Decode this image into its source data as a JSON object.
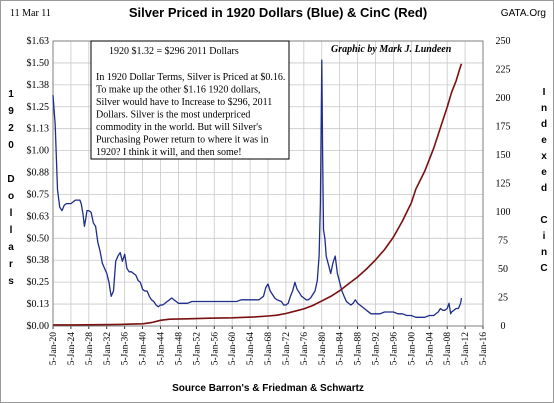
{
  "header": {
    "date": "11 Mar 11",
    "title": "Silver Priced in 1920 Dollars (Blue) & CinC (Red)",
    "source_tag": "GATA.Org"
  },
  "credit": "Graphic by Mark J. Lundeen",
  "source_note": "Source Barron's & Friedman & Schwartz",
  "annotation": {
    "headline": "1920 $1.32 = $296 2011 Dollars",
    "lines": [
      "In 1920 Dollar Terms, Silver is Priced at $0.16.",
      "To make up the other $1.16 1920 dollars,",
      "Silver would have to Increase to $296, 2011",
      "Dollars.  Silver is the most underpriced",
      "commodity in the world.   But will Silver's",
      "Purchasing Power return to where it was in",
      "1920?  I think it will, and then some!"
    ]
  },
  "left_axis_label": [
    "1",
    "9",
    "2",
    "0",
    "",
    "D",
    "o",
    "l",
    "l",
    "a",
    "r",
    "s"
  ],
  "right_axis_label": [
    "I",
    "n",
    "d",
    "e",
    "x",
    "e",
    "d",
    "",
    "C",
    "i",
    "n",
    "C"
  ],
  "colors": {
    "silver_series": "#1f2d8a",
    "cinc_series": "#7a1010",
    "grid": "#c8c8c8",
    "plot_border": "#7f7f7f"
  },
  "chart_data": {
    "type": "line",
    "title": "Silver Priced in 1920 Dollars (Blue) & CinC (Red)",
    "xlabel": "Source Barron's & Friedman & Schwartz",
    "ylabel_left": "1920 Dollars",
    "ylabel_right": "Indexed CinC",
    "x_tick_labels": [
      "5-Jan-20",
      "5-Jan-24",
      "5-Jan-28",
      "5-Jan-32",
      "5-Jan-36",
      "5-Jan-40",
      "5-Jan-44",
      "5-Jan-48",
      "5-Jan-52",
      "5-Jan-56",
      "5-Jan-60",
      "5-Jan-64",
      "5-Jan-68",
      "5-Jan-72",
      "5-Jan-76",
      "5-Jan-80",
      "5-Jan-84",
      "5-Jan-88",
      "5-Jan-92",
      "5-Jan-96",
      "5-Jan-00",
      "5-Jan-04",
      "5-Jan-08",
      "5-Jan-12",
      "5-Jan-16"
    ],
    "x_tick_years": [
      1920,
      1924,
      1928,
      1932,
      1936,
      1940,
      1944,
      1948,
      1952,
      1956,
      1960,
      1964,
      1968,
      1972,
      1976,
      1980,
      1984,
      1988,
      1992,
      1996,
      2000,
      2004,
      2008,
      2012,
      2016
    ],
    "xlim": [
      1920,
      2016
    ],
    "ylim_left": [
      0,
      1.63
    ],
    "y_ticks_left": [
      "$0.00",
      "$0.13",
      "$0.25",
      "$0.38",
      "$0.50",
      "$0.63",
      "$0.75",
      "$0.88",
      "$1.00",
      "$1.13",
      "$1.25",
      "$1.38",
      "$1.50",
      "$1.63"
    ],
    "y_tick_values_left": [
      0,
      0.1254,
      0.2508,
      0.3762,
      0.5015,
      0.6269,
      0.7523,
      0.8777,
      1.0031,
      1.1285,
      1.2538,
      1.3792,
      1.5046,
      1.63
    ],
    "ylim_right": [
      0,
      250
    ],
    "y_ticks_right": [
      "0",
      "25",
      "50",
      "75",
      "100",
      "125",
      "150",
      "175",
      "200",
      "225",
      "250"
    ],
    "y_tick_values_right": [
      0,
      25,
      50,
      75,
      100,
      125,
      150,
      175,
      200,
      225,
      250
    ],
    "grid": true,
    "series": [
      {
        "name": "Silver in 1920 Dollars (Blue)",
        "axis": "left",
        "points": [
          [
            1920.0,
            1.32
          ],
          [
            1920.5,
            1.15
          ],
          [
            1921.0,
            0.78
          ],
          [
            1921.5,
            0.68
          ],
          [
            1922.0,
            0.66
          ],
          [
            1922.5,
            0.69
          ],
          [
            1923.0,
            0.7
          ],
          [
            1923.5,
            0.7
          ],
          [
            1924.0,
            0.7
          ],
          [
            1924.5,
            0.71
          ],
          [
            1925.0,
            0.72
          ],
          [
            1925.5,
            0.72
          ],
          [
            1926.0,
            0.72
          ],
          [
            1926.3,
            0.7
          ],
          [
            1926.7,
            0.64
          ],
          [
            1927.0,
            0.57
          ],
          [
            1927.3,
            0.61
          ],
          [
            1927.6,
            0.66
          ],
          [
            1928.0,
            0.66
          ],
          [
            1928.5,
            0.65
          ],
          [
            1929.0,
            0.59
          ],
          [
            1929.5,
            0.57
          ],
          [
            1930.0,
            0.48
          ],
          [
            1930.5,
            0.43
          ],
          [
            1931.0,
            0.36
          ],
          [
            1931.5,
            0.33
          ],
          [
            1932.0,
            0.3
          ],
          [
            1932.5,
            0.25
          ],
          [
            1932.8,
            0.2
          ],
          [
            1933.0,
            0.17
          ],
          [
            1933.5,
            0.2
          ],
          [
            1934.0,
            0.37
          ],
          [
            1934.5,
            0.4
          ],
          [
            1935.0,
            0.42
          ],
          [
            1935.5,
            0.37
          ],
          [
            1936.0,
            0.41
          ],
          [
            1936.5,
            0.33
          ],
          [
            1937.0,
            0.31
          ],
          [
            1937.5,
            0.31
          ],
          [
            1938.0,
            0.3
          ],
          [
            1938.5,
            0.29
          ],
          [
            1939.0,
            0.26
          ],
          [
            1939.5,
            0.25
          ],
          [
            1940.0,
            0.21
          ],
          [
            1940.5,
            0.2
          ],
          [
            1941.0,
            0.2
          ],
          [
            1941.5,
            0.17
          ],
          [
            1942.0,
            0.15
          ],
          [
            1942.5,
            0.14
          ],
          [
            1943.0,
            0.12
          ],
          [
            1943.5,
            0.11
          ],
          [
            1944.0,
            0.12
          ],
          [
            1944.5,
            0.12
          ],
          [
            1945.0,
            0.13
          ],
          [
            1945.5,
            0.14
          ],
          [
            1946.0,
            0.15
          ],
          [
            1946.5,
            0.16
          ],
          [
            1947.0,
            0.15
          ],
          [
            1947.5,
            0.14
          ],
          [
            1948.0,
            0.13
          ],
          [
            1949.0,
            0.13
          ],
          [
            1950.0,
            0.13
          ],
          [
            1951.0,
            0.14
          ],
          [
            1952.0,
            0.14
          ],
          [
            1953.0,
            0.14
          ],
          [
            1954.0,
            0.14
          ],
          [
            1955.0,
            0.14
          ],
          [
            1956.0,
            0.14
          ],
          [
            1957.0,
            0.14
          ],
          [
            1958.0,
            0.14
          ],
          [
            1959.0,
            0.14
          ],
          [
            1960.0,
            0.14
          ],
          [
            1961.0,
            0.14
          ],
          [
            1962.0,
            0.15
          ],
          [
            1963.0,
            0.15
          ],
          [
            1964.0,
            0.15
          ],
          [
            1965.0,
            0.15
          ],
          [
            1966.0,
            0.15
          ],
          [
            1966.5,
            0.16
          ],
          [
            1967.0,
            0.17
          ],
          [
            1967.5,
            0.22
          ],
          [
            1968.0,
            0.24
          ],
          [
            1968.5,
            0.2
          ],
          [
            1969.0,
            0.18
          ],
          [
            1969.5,
            0.16
          ],
          [
            1970.0,
            0.15
          ],
          [
            1971.0,
            0.14
          ],
          [
            1971.5,
            0.12
          ],
          [
            1972.0,
            0.12
          ],
          [
            1972.5,
            0.13
          ],
          [
            1973.0,
            0.17
          ],
          [
            1973.5,
            0.2
          ],
          [
            1974.0,
            0.25
          ],
          [
            1974.5,
            0.21
          ],
          [
            1975.0,
            0.19
          ],
          [
            1975.5,
            0.17
          ],
          [
            1976.0,
            0.16
          ],
          [
            1976.5,
            0.15
          ],
          [
            1977.0,
            0.15
          ],
          [
            1977.5,
            0.16
          ],
          [
            1978.0,
            0.18
          ],
          [
            1978.5,
            0.2
          ],
          [
            1979.0,
            0.26
          ],
          [
            1979.4,
            0.4
          ],
          [
            1979.7,
            0.7
          ],
          [
            1980.0,
            1.52
          ],
          [
            1980.2,
            1.0
          ],
          [
            1980.4,
            0.55
          ],
          [
            1980.7,
            0.5
          ],
          [
            1981.0,
            0.4
          ],
          [
            1981.5,
            0.35
          ],
          [
            1982.0,
            0.3
          ],
          [
            1982.5,
            0.36
          ],
          [
            1983.0,
            0.4
          ],
          [
            1983.5,
            0.3
          ],
          [
            1984.0,
            0.25
          ],
          [
            1984.5,
            0.2
          ],
          [
            1985.0,
            0.17
          ],
          [
            1985.5,
            0.14
          ],
          [
            1986.0,
            0.13
          ],
          [
            1986.5,
            0.12
          ],
          [
            1987.0,
            0.13
          ],
          [
            1987.5,
            0.15
          ],
          [
            1988.0,
            0.13
          ],
          [
            1988.5,
            0.12
          ],
          [
            1989.0,
            0.11
          ],
          [
            1989.5,
            0.1
          ],
          [
            1990.0,
            0.09
          ],
          [
            1991.0,
            0.07
          ],
          [
            1992.0,
            0.07
          ],
          [
            1993.0,
            0.07
          ],
          [
            1994.0,
            0.08
          ],
          [
            1995.0,
            0.08
          ],
          [
            1996.0,
            0.08
          ],
          [
            1997.0,
            0.07
          ],
          [
            1998.0,
            0.07
          ],
          [
            1999.0,
            0.06
          ],
          [
            2000.0,
            0.06
          ],
          [
            2001.0,
            0.05
          ],
          [
            2002.0,
            0.05
          ],
          [
            2003.0,
            0.05
          ],
          [
            2004.0,
            0.06
          ],
          [
            2005.0,
            0.06
          ],
          [
            2006.0,
            0.08
          ],
          [
            2006.5,
            0.1
          ],
          [
            2007.0,
            0.09
          ],
          [
            2007.5,
            0.09
          ],
          [
            2008.0,
            0.1
          ],
          [
            2008.4,
            0.13
          ],
          [
            2008.8,
            0.07
          ],
          [
            2009.0,
            0.08
          ],
          [
            2009.5,
            0.09
          ],
          [
            2010.0,
            0.1
          ],
          [
            2010.5,
            0.1
          ],
          [
            2011.0,
            0.13
          ],
          [
            2011.2,
            0.16
          ]
        ]
      },
      {
        "name": "CinC Indexed (Red)",
        "axis": "right",
        "points": [
          [
            1920.0,
            1.0
          ],
          [
            1925.0,
            1.0
          ],
          [
            1930.0,
            1.1
          ],
          [
            1933.0,
            1.2
          ],
          [
            1935.0,
            1.4
          ],
          [
            1940.0,
            1.9
          ],
          [
            1942.0,
            3.0
          ],
          [
            1944.0,
            5.0
          ],
          [
            1946.0,
            6.0
          ],
          [
            1950.0,
            6.3
          ],
          [
            1955.0,
            6.8
          ],
          [
            1960.0,
            7.2
          ],
          [
            1965.0,
            8.0
          ],
          [
            1968.0,
            8.8
          ],
          [
            1970.0,
            9.5
          ],
          [
            1972.0,
            11.0
          ],
          [
            1974.0,
            13.0
          ],
          [
            1976.0,
            15.0
          ],
          [
            1978.0,
            18.0
          ],
          [
            1980.0,
            22.0
          ],
          [
            1982.0,
            26.0
          ],
          [
            1984.0,
            31.0
          ],
          [
            1986.0,
            37.0
          ],
          [
            1988.0,
            43.0
          ],
          [
            1990.0,
            50.0
          ],
          [
            1992.0,
            58.0
          ],
          [
            1994.0,
            67.0
          ],
          [
            1996.0,
            78.0
          ],
          [
            1998.0,
            92.0
          ],
          [
            2000.0,
            108.0
          ],
          [
            2001.0,
            120.0
          ],
          [
            2002.0,
            128.0
          ],
          [
            2003.0,
            136.0
          ],
          [
            2004.0,
            146.0
          ],
          [
            2005.0,
            156.0
          ],
          [
            2006.0,
            168.0
          ],
          [
            2007.0,
            180.0
          ],
          [
            2008.0,
            192.0
          ],
          [
            2009.0,
            205.0
          ],
          [
            2010.0,
            215.0
          ],
          [
            2011.0,
            228.0
          ],
          [
            2011.2,
            230.0
          ]
        ]
      }
    ]
  }
}
